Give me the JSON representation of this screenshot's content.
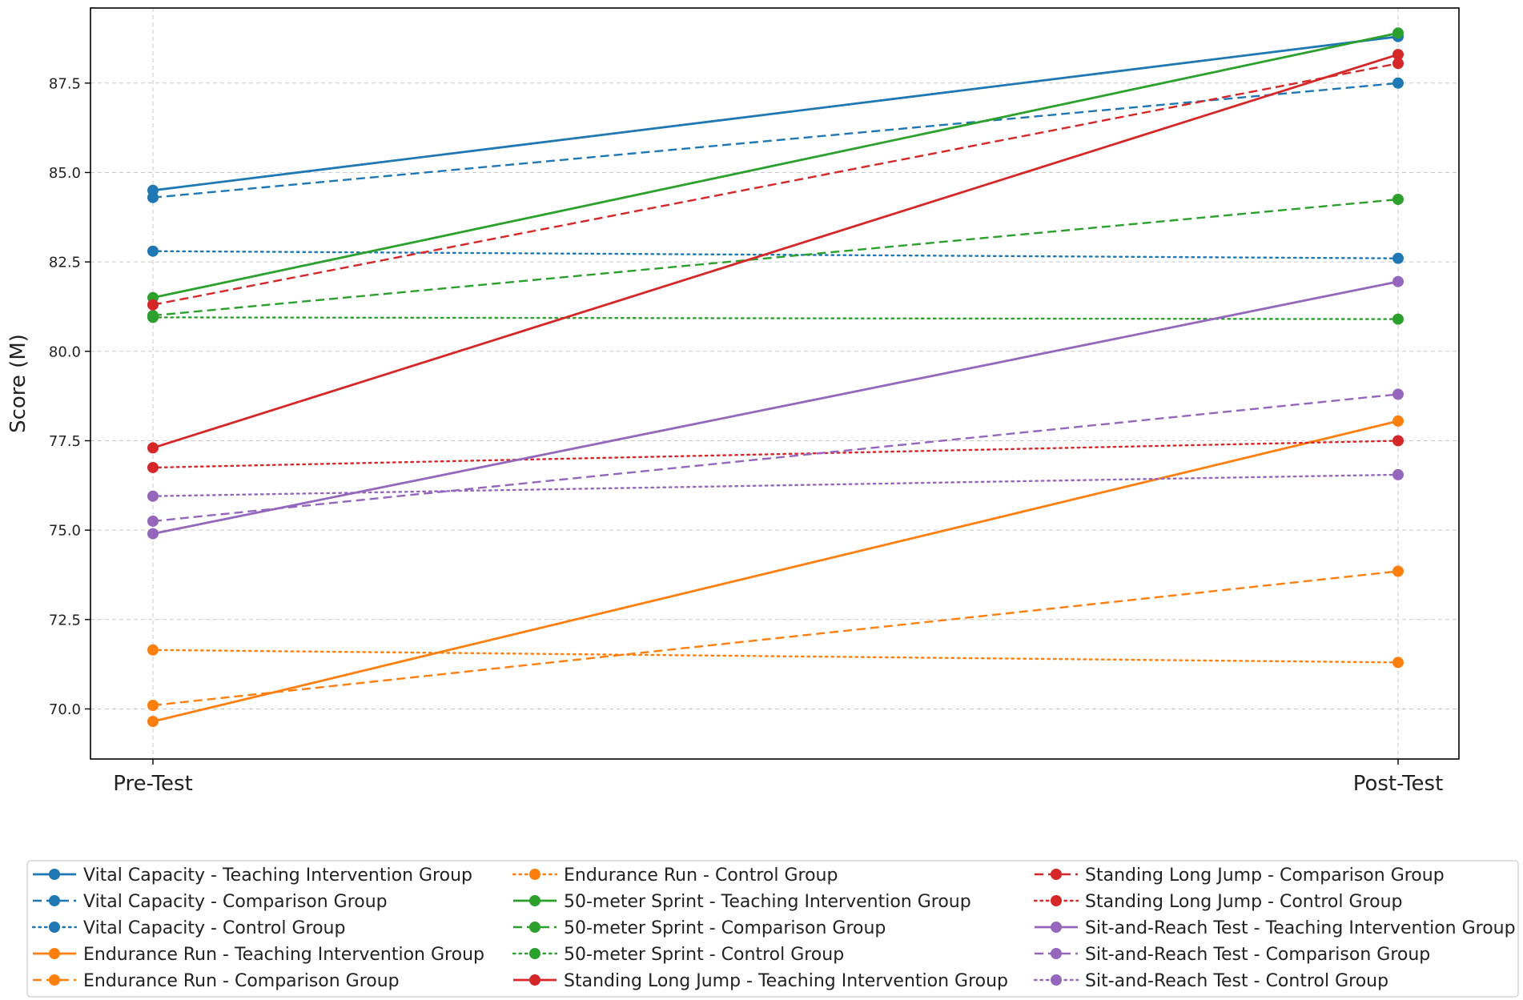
{
  "chart_data": {
    "type": "line",
    "title": "",
    "xlabel": "",
    "ylabel": "Score (M)",
    "categories": [
      "Pre-Test",
      "Post-Test"
    ],
    "ylim": [
      68.6,
      89.6
    ],
    "yticks": [
      "70.0",
      "72.5",
      "75.0",
      "77.5",
      "80.0",
      "82.5",
      "85.0",
      "87.5"
    ],
    "grid": true,
    "legend_position": "bottom",
    "series": [
      {
        "name": "Vital Capacity - Teaching Intervention Group",
        "values": [
          84.5,
          88.8
        ],
        "color": "#1f77b4",
        "dash": "solid"
      },
      {
        "name": "Vital Capacity - Comparison Group",
        "values": [
          84.3,
          87.5
        ],
        "color": "#1f77b4",
        "dash": "dashed"
      },
      {
        "name": "Vital Capacity - Control Group",
        "values": [
          82.8,
          82.6
        ],
        "color": "#1f77b4",
        "dash": "dotted"
      },
      {
        "name": "Endurance Run - Teaching Intervention Group",
        "values": [
          69.65,
          78.05
        ],
        "color": "#ff7f0e",
        "dash": "solid"
      },
      {
        "name": "Endurance Run - Comparison Group",
        "values": [
          70.1,
          73.85
        ],
        "color": "#ff7f0e",
        "dash": "dashed"
      },
      {
        "name": "Endurance Run - Control Group",
        "values": [
          71.65,
          71.3
        ],
        "color": "#ff7f0e",
        "dash": "dotted"
      },
      {
        "name": "50-meter Sprint - Teaching Intervention Group",
        "values": [
          81.5,
          88.9
        ],
        "color": "#2ca02c",
        "dash": "solid"
      },
      {
        "name": "50-meter Sprint - Comparison Group",
        "values": [
          81.0,
          84.25
        ],
        "color": "#2ca02c",
        "dash": "dashed"
      },
      {
        "name": "50-meter Sprint - Control Group",
        "values": [
          80.95,
          80.9
        ],
        "color": "#2ca02c",
        "dash": "dotted"
      },
      {
        "name": "Standing Long Jump - Teaching Intervention Group",
        "values": [
          77.3,
          88.3
        ],
        "color": "#d62728",
        "dash": "solid"
      },
      {
        "name": "Standing Long Jump - Comparison Group",
        "values": [
          81.3,
          88.05
        ],
        "color": "#d62728",
        "dash": "dashed"
      },
      {
        "name": "Standing Long Jump - Control Group",
        "values": [
          76.75,
          77.5
        ],
        "color": "#d62728",
        "dash": "dotted"
      },
      {
        "name": "Sit-and-Reach Test - Teaching Intervention Group",
        "values": [
          74.9,
          81.95
        ],
        "color": "#9467bd",
        "dash": "solid"
      },
      {
        "name": "Sit-and-Reach Test - Comparison Group",
        "values": [
          75.25,
          78.8
        ],
        "color": "#9467bd",
        "dash": "dashed"
      },
      {
        "name": "Sit-and-Reach Test - Control Group",
        "values": [
          75.95,
          76.55
        ],
        "color": "#9467bd",
        "dash": "dotted"
      }
    ]
  }
}
